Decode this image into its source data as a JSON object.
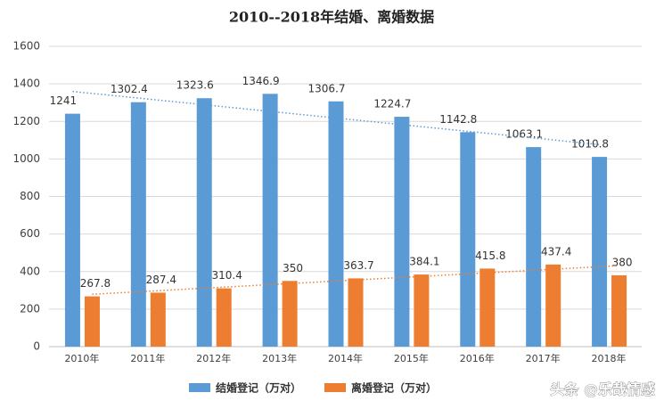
{
  "chart_data": {
    "type": "bar",
    "title": "2010--2018年结婚、离婚数据",
    "categories": [
      "2010年",
      "2011年",
      "2012年",
      "2013年",
      "2014年",
      "2015年",
      "2016年",
      "2017年",
      "2018年"
    ],
    "series": [
      {
        "name": "结婚登记（万对）",
        "color": "#5b9bd5",
        "values": [
          1241,
          1302.4,
          1323.6,
          1346.9,
          1306.7,
          1224.7,
          1142.8,
          1063.1,
          1010.8
        ]
      },
      {
        "name": "离婚登记（万对）",
        "color": "#ed7d31",
        "values": [
          267.8,
          287.4,
          310.4,
          350,
          363.7,
          384.1,
          415.8,
          437.4,
          380
        ]
      }
    ],
    "ylim": [
      0,
      1600
    ],
    "yticks": [
      0,
      200,
      400,
      600,
      800,
      1000,
      1200,
      1400,
      1600
    ],
    "grid": true,
    "trendline": true,
    "legend": "bottom",
    "watermark": "头条 @乐哉情感"
  }
}
